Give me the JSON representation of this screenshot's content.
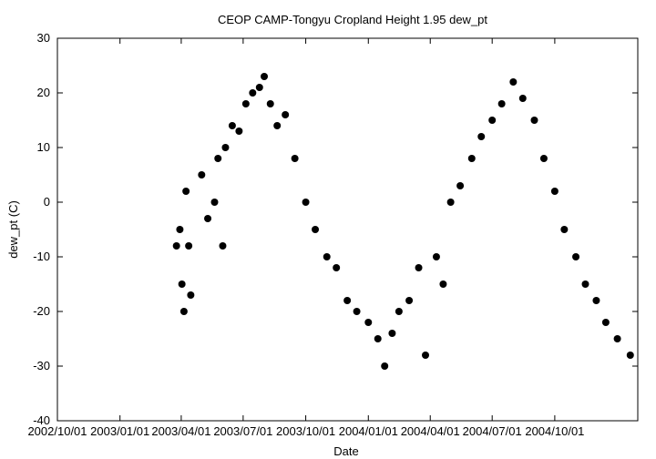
{
  "chart_data": {
    "type": "scatter",
    "title": "CEOP CAMP-Tongyu Cropland Height 1.95 dew_pt",
    "xlabel": "Date",
    "ylabel": "dew_pt (C)",
    "ylim": [
      -40,
      30
    ],
    "yticks": [
      30,
      20,
      10,
      0,
      -10,
      -20,
      -30,
      -40
    ],
    "xlim": [
      "2002-10-01",
      "2005-01-31"
    ],
    "xticks": [
      "2002-10-01",
      "2003-01-01",
      "2003-04-01",
      "2003-07-01",
      "2003-10-01",
      "2004-01-01",
      "2004-04-01",
      "2004-07-01",
      "2004-10-01"
    ],
    "xtick_labels": [
      "2002/10/01",
      "2003/01/01",
      "2003/04/01",
      "2003/07/01",
      "2003/10/01",
      "2004/01/01",
      "2004/04/01",
      "2004/07/01",
      "2004/10/01"
    ],
    "grid": false,
    "marker_color": "#000000",
    "series": [
      {
        "points": [
          [
            "2003-03-25",
            -8
          ],
          [
            "2003-03-30",
            -5
          ],
          [
            "2003-04-02",
            -15
          ],
          [
            "2003-04-05",
            -20
          ],
          [
            "2003-04-08",
            2
          ],
          [
            "2003-04-12",
            -8
          ],
          [
            "2003-04-15",
            -17
          ],
          [
            "2003-05-01",
            5
          ],
          [
            "2003-05-10",
            -3
          ],
          [
            "2003-05-20",
            0
          ],
          [
            "2003-05-25",
            8
          ],
          [
            "2003-06-01",
            -8
          ],
          [
            "2003-06-05",
            10
          ],
          [
            "2003-06-15",
            14
          ],
          [
            "2003-06-25",
            13
          ],
          [
            "2003-07-05",
            18
          ],
          [
            "2003-07-15",
            20
          ],
          [
            "2003-07-25",
            21
          ],
          [
            "2003-08-01",
            23
          ],
          [
            "2003-08-10",
            18
          ],
          [
            "2003-08-20",
            14
          ],
          [
            "2003-09-01",
            16
          ],
          [
            "2003-09-15",
            8
          ],
          [
            "2003-10-01",
            0
          ],
          [
            "2003-10-15",
            -5
          ],
          [
            "2003-11-01",
            -10
          ],
          [
            "2003-11-15",
            -12
          ],
          [
            "2003-12-01",
            -18
          ],
          [
            "2003-12-15",
            -20
          ],
          [
            "2004-01-01",
            -22
          ],
          [
            "2004-01-15",
            -25
          ],
          [
            "2004-01-25",
            -30
          ],
          [
            "2004-02-05",
            -24
          ],
          [
            "2004-02-15",
            -20
          ],
          [
            "2004-03-01",
            -18
          ],
          [
            "2004-03-15",
            -12
          ],
          [
            "2004-03-25",
            -28
          ],
          [
            "2004-04-10",
            -10
          ],
          [
            "2004-04-20",
            -15
          ],
          [
            "2004-05-01",
            0
          ],
          [
            "2004-05-15",
            3
          ],
          [
            "2004-06-01",
            8
          ],
          [
            "2004-06-15",
            12
          ],
          [
            "2004-07-01",
            15
          ],
          [
            "2004-07-15",
            18
          ],
          [
            "2004-08-01",
            22
          ],
          [
            "2004-08-15",
            19
          ],
          [
            "2004-09-01",
            15
          ],
          [
            "2004-09-15",
            8
          ],
          [
            "2004-10-01",
            2
          ],
          [
            "2004-10-15",
            -5
          ],
          [
            "2004-11-01",
            -10
          ],
          [
            "2004-11-15",
            -15
          ],
          [
            "2004-12-01",
            -18
          ],
          [
            "2004-12-15",
            -22
          ],
          [
            "2005-01-01",
            -25
          ],
          [
            "2005-01-20",
            -28
          ]
        ]
      }
    ]
  }
}
